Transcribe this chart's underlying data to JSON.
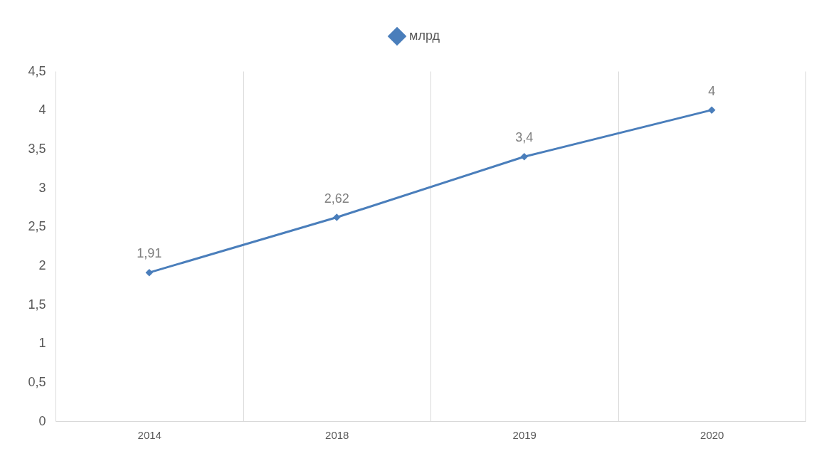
{
  "chart_data": {
    "type": "line",
    "categories": [
      "2014",
      "2018",
      "2019",
      "2020"
    ],
    "series": [
      {
        "name": "млрд",
        "color": "#4a7ebb",
        "values": [
          1.91,
          2.62,
          3.4,
          4
        ],
        "value_labels": [
          "1,91",
          "2,62",
          "3,4",
          "4"
        ]
      }
    ],
    "ylim": [
      0,
      4.5
    ],
    "yticks": [
      0,
      {
        "value": 0.5,
        "label": "0,5"
      },
      1,
      {
        "value": 1.5,
        "label": "1,5"
      },
      2,
      {
        "value": 2.5,
        "label": "2,5"
      },
      3,
      {
        "value": 3.5,
        "label": "3,5"
      },
      4,
      {
        "value": 4.5,
        "label": "4,5"
      }
    ],
    "grid": "x",
    "legend": "top",
    "marker": "diamond",
    "line_style": "solid"
  }
}
